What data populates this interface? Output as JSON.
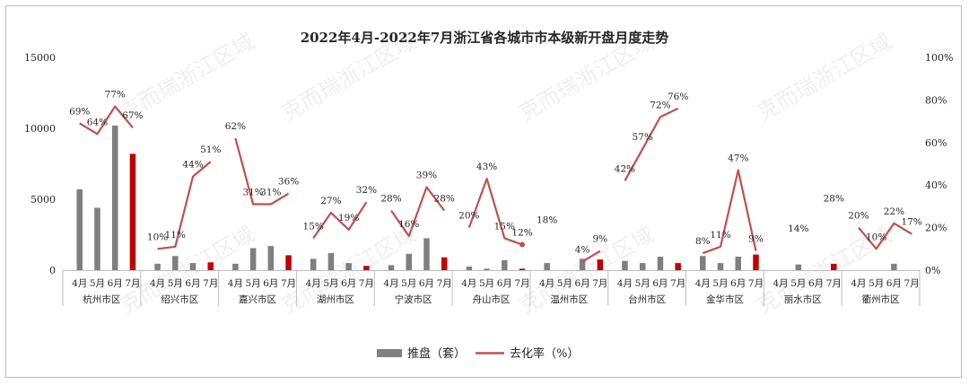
{
  "chart_data": {
    "type": "bar+line",
    "title": "2022年4月-2022年7月浙江省各城市市本级新开盘月度走势",
    "watermark": "克而瑞浙江区域",
    "months": [
      "4月",
      "5月",
      "6月",
      "7月"
    ],
    "cities": [
      "杭州市区",
      "绍兴市区",
      "嘉兴市区",
      "湖州市区",
      "宁波市区",
      "舟山市区",
      "温州市区",
      "台州市区",
      "金华市区",
      "丽水市区",
      "衢州市区"
    ],
    "series": [
      {
        "name": "推盘（套）",
        "type": "bar",
        "axis": "left",
        "color": "#7f7f7f",
        "highlight_color": "#c00000",
        "values": [
          [
            5700,
            4400,
            10200,
            8200
          ],
          [
            450,
            1000,
            500,
            550
          ],
          [
            450,
            1550,
            1700,
            1050
          ],
          [
            800,
            1200,
            500,
            300
          ],
          [
            350,
            1150,
            2250,
            900
          ],
          [
            250,
            100,
            700,
            100
          ],
          [
            500,
            null,
            800,
            750
          ],
          [
            650,
            500,
            950,
            500
          ],
          [
            1000,
            500,
            950,
            1100
          ],
          [
            null,
            400,
            null,
            450
          ],
          [
            null,
            0,
            450,
            null
          ]
        ]
      },
      {
        "name": "去化率（%）",
        "type": "line",
        "axis": "right",
        "color": "#c0504d",
        "values": [
          [
            69,
            64,
            77,
            67
          ],
          [
            10,
            11,
            44,
            51
          ],
          [
            62,
            31,
            31,
            36
          ],
          [
            15,
            27,
            19,
            32
          ],
          [
            28,
            16,
            39,
            28
          ],
          [
            20,
            43,
            15,
            12
          ],
          [
            18,
            null,
            4,
            9
          ],
          [
            42,
            57,
            72,
            76
          ],
          [
            8,
            11,
            47,
            9
          ],
          [
            null,
            14,
            null,
            28
          ],
          [
            20,
            10,
            22,
            17
          ]
        ]
      }
    ],
    "y_left": {
      "min": 0,
      "max": 15000,
      "ticks": [
        "0",
        "5000",
        "10000",
        "15000"
      ]
    },
    "y_right": {
      "min": 0,
      "max": 100,
      "ticks": [
        "0%",
        "20%",
        "40%",
        "60%",
        "80%",
        "100%"
      ]
    },
    "legend": {
      "position": "bottom",
      "items": [
        "推盘（套）",
        "去化率（%）"
      ]
    },
    "grid": false
  },
  "colors": {
    "bar": "#7f7f7f",
    "bar_highlight": "#c00000",
    "line": "#c0504d",
    "text": "#262626"
  }
}
